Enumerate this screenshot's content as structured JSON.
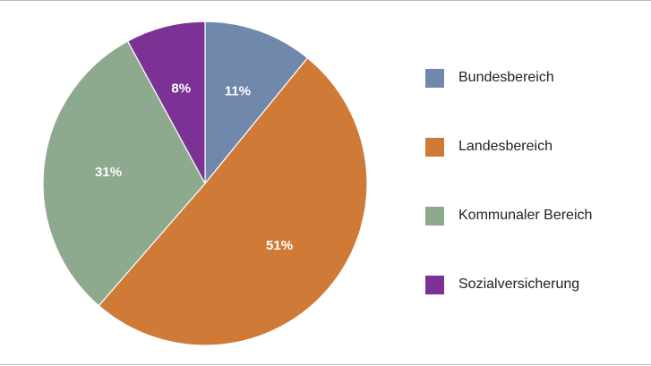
{
  "chart_data": {
    "type": "pie",
    "categories": [
      "Bundesbereich",
      "Landesbereich",
      "Kommunaler Bereich",
      "Sozialversicherung"
    ],
    "values": [
      11,
      51,
      31,
      8
    ],
    "value_labels": [
      "11%",
      "51%",
      "31%",
      "8%"
    ],
    "colors": [
      "#6f88ab",
      "#d07a38",
      "#8da98e",
      "#7b3294"
    ],
    "legend": "right"
  }
}
